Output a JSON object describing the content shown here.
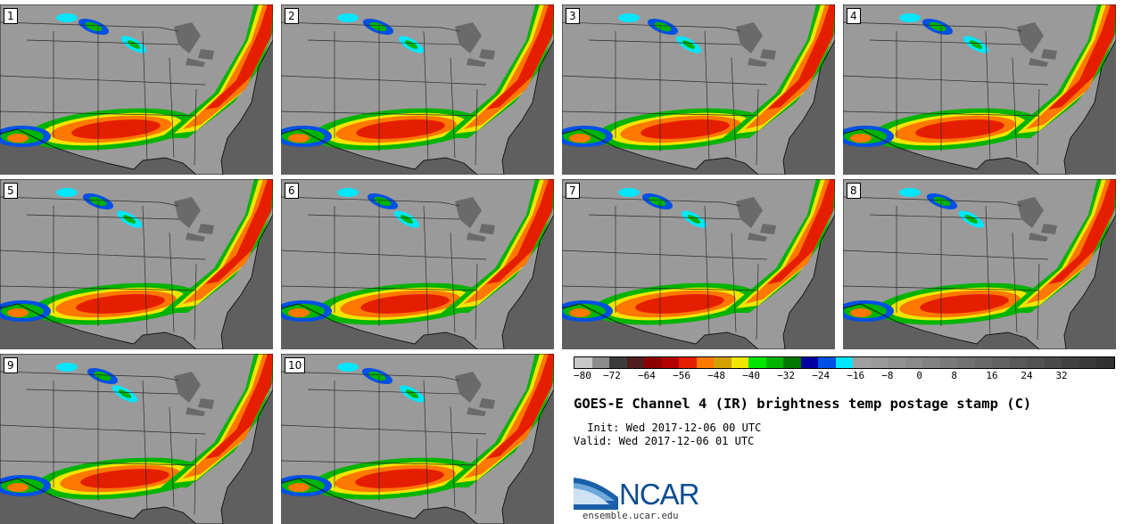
{
  "members": [
    {
      "label": "1"
    },
    {
      "label": "2"
    },
    {
      "label": "3"
    },
    {
      "label": "4"
    },
    {
      "label": "5"
    },
    {
      "label": "6"
    },
    {
      "label": "7"
    },
    {
      "label": "8"
    },
    {
      "label": "9"
    },
    {
      "label": "10"
    }
  ],
  "colorbar": {
    "colors": [
      "#c8c8c8",
      "#8c8c8c",
      "#3c3c3c",
      "#501e1e",
      "#8c0000",
      "#b40000",
      "#e61e00",
      "#ff7800",
      "#d2a000",
      "#f0e600",
      "#00e600",
      "#00b400",
      "#007800",
      "#0000a0",
      "#0050e6",
      "#00e6ff",
      "#a0a0a0",
      "#9a9a9a",
      "#929292",
      "#8a8a8a",
      "#828282",
      "#7a7a7a",
      "#727272",
      "#6a6a6a",
      "#626262",
      "#5a5a5a",
      "#525252",
      "#4a4a4a",
      "#424242",
      "#3a3a3a",
      "#323232"
    ],
    "ticks": [
      "−80",
      "−72",
      "−64",
      "−56",
      "−48",
      "−40",
      "−32",
      "−24",
      "−16",
      "−8",
      "0",
      "8",
      "16",
      "24",
      "32"
    ]
  },
  "title": "GOES-E Channel 4 (IR) brightness temp postage stamp (C)",
  "init": " Init: Wed 2017-12-06 00 UTC",
  "valid": "Valid: Wed 2017-12-06 01 UTC",
  "logo": "NCAR",
  "url": "ensemble.ucar.edu"
}
